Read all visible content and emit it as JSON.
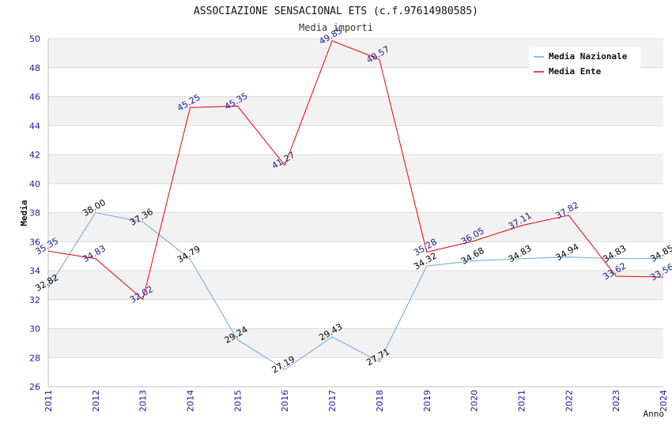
{
  "chart_data": {
    "type": "line",
    "title": "ASSOCIAZIONE SENSACIONAL ETS (c.f.97614980585)",
    "subtitle": "Media importi",
    "xlabel": "Anno",
    "ylabel": "Media",
    "ylim": [
      26,
      50
    ],
    "y_ticks": [
      26,
      28,
      30,
      32,
      34,
      36,
      38,
      40,
      42,
      44,
      46,
      48,
      50
    ],
    "x": [
      "2011",
      "2012",
      "2013",
      "2014",
      "2015",
      "2016",
      "2017",
      "2018",
      "2019",
      "2020",
      "2021",
      "2022",
      "2023",
      "2024"
    ],
    "series": [
      {
        "name": "Media Nazionale",
        "color": "#6fa8dc",
        "label_color": "#000000",
        "values": [
          32.82,
          38.0,
          37.36,
          34.79,
          29.24,
          27.19,
          29.43,
          27.71,
          34.32,
          34.68,
          34.83,
          34.94,
          34.83,
          34.85
        ],
        "labels": [
          "32.82",
          "38.00",
          "37.36",
          "34.79",
          "29.24",
          "27.19",
          "29.43",
          "27.71",
          "34.32",
          "34.68",
          "34.83",
          "34.94",
          "34.83",
          "34.85"
        ]
      },
      {
        "name": "Media Ente",
        "color": "#e8000b",
        "label_color": "#1a1a8c",
        "values": [
          35.35,
          34.83,
          32.02,
          45.25,
          45.35,
          41.27,
          49.85,
          48.57,
          35.28,
          36.05,
          37.11,
          37.82,
          33.62,
          33.56
        ],
        "labels": [
          "35.35",
          "34.83",
          "32.02",
          "45.25",
          "45.35",
          "41.27",
          "49.85",
          "48.57",
          "35.28",
          "36.05",
          "37.11",
          "37.82",
          "33.62",
          "33.56"
        ]
      }
    ],
    "legend_position": "top-right",
    "grid": true
  }
}
